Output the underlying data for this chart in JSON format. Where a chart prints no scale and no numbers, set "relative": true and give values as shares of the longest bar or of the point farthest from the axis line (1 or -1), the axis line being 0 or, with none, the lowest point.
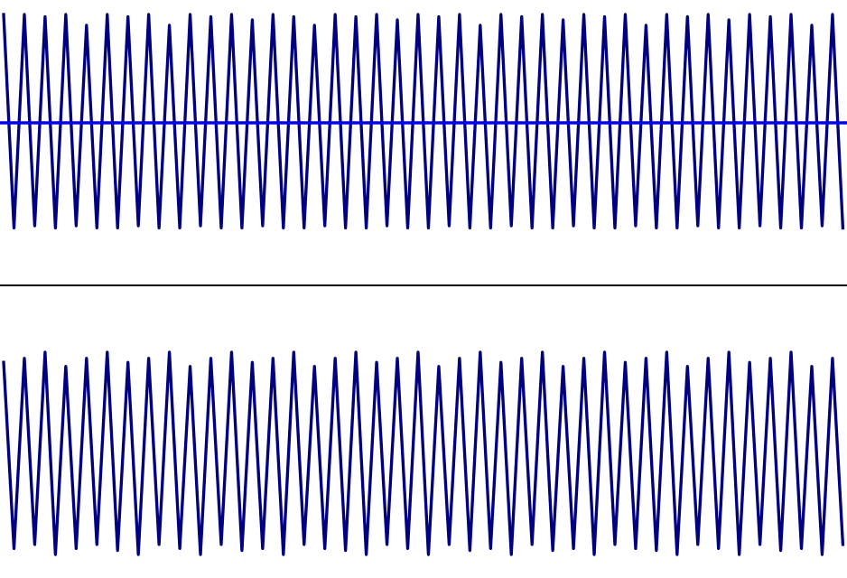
{
  "chart_data": [
    {
      "type": "line",
      "relative": true,
      "tick_labels": false,
      "legend": false,
      "marker": "none",
      "line_style": "solid",
      "ref_lines": [
        {
          "axis": "y",
          "value": 0,
          "color": "#0000ff",
          "line_style": "solid"
        }
      ],
      "categories": [
        null,
        null,
        null,
        null,
        null,
        null,
        null,
        null,
        null,
        null,
        null,
        null,
        null,
        null,
        null,
        null,
        null,
        null,
        null,
        null,
        null,
        null,
        null,
        null,
        null,
        null,
        null,
        null,
        null,
        null,
        null,
        null,
        null,
        null,
        null,
        null,
        null,
        null,
        null,
        null,
        null,
        null,
        null,
        null,
        null,
        null,
        null,
        null,
        null,
        null,
        null,
        null,
        null,
        null,
        null,
        null,
        null,
        null,
        null,
        null,
        null,
        null,
        null,
        null,
        null,
        null,
        null,
        null,
        null,
        null,
        null,
        null,
        null,
        null,
        null,
        null,
        null,
        null,
        null,
        null,
        null,
        null
      ],
      "series": [
        {
          "color": "#000080",
          "values": [
            1,
            -0.97,
            1,
            -0.95,
            0.98,
            -0.97,
            1,
            -0.95,
            0.9,
            -0.97,
            1,
            -0.97,
            0.98,
            -0.95,
            1,
            -0.97,
            0.9,
            -0.97,
            1,
            -0.95,
            0.98,
            -0.97,
            1,
            -0.97,
            0.95,
            -0.95,
            1,
            -0.97,
            0.98,
            -0.97,
            0.9,
            -0.95,
            1,
            -0.97,
            0.98,
            -0.97,
            1,
            -0.95,
            0.95,
            -0.97,
            1,
            -0.97,
            0.98,
            -0.95,
            1,
            -0.97,
            0.9,
            -0.97,
            1,
            -0.95,
            0.98,
            -0.97,
            1,
            -0.97,
            0.95,
            -0.95,
            1,
            -0.97,
            0.98,
            -0.97,
            1,
            -0.95,
            0.9,
            -0.97,
            1,
            -0.97,
            0.98,
            -0.95,
            1,
            -0.97,
            0.95,
            -0.97,
            1,
            -0.95,
            0.98,
            -0.97,
            1,
            -0.97,
            0.9,
            -0.95,
            1,
            -0.97
          ]
        }
      ]
    },
    {
      "type": "line",
      "relative": true,
      "tick_labels": false,
      "legend": false,
      "marker": "none",
      "line_style": "solid",
      "categories": [
        null,
        null,
        null,
        null,
        null,
        null,
        null,
        null,
        null,
        null,
        null,
        null,
        null,
        null,
        null,
        null,
        null,
        null,
        null,
        null,
        null,
        null,
        null,
        null,
        null,
        null,
        null,
        null,
        null,
        null,
        null,
        null,
        null,
        null,
        null,
        null,
        null,
        null,
        null,
        null,
        null,
        null,
        null,
        null,
        null,
        null,
        null,
        null,
        null,
        null,
        null,
        null,
        null,
        null,
        null,
        null,
        null,
        null,
        null,
        null,
        null,
        null,
        null,
        null,
        null,
        null,
        null,
        null,
        null,
        null,
        null,
        null,
        null,
        null,
        null,
        null,
        null,
        null,
        null,
        null,
        null,
        null
      ],
      "series": [
        {
          "color": "#000080",
          "values": [
            0.95,
            0.03,
            0.97,
            0.05,
            1,
            0,
            0.93,
            0.03,
            0.97,
            0.05,
            1,
            0.02,
            0.95,
            0,
            0.97,
            0.05,
            1,
            0.03,
            0.93,
            0,
            0.97,
            0.05,
            1,
            0.02,
            0.95,
            0.03,
            0.97,
            0,
            1,
            0.05,
            0.93,
            0.03,
            0.97,
            0.02,
            1,
            0,
            0.95,
            0.05,
            0.97,
            0.03,
            1,
            0,
            0.93,
            0.05,
            0.97,
            0.02,
            1,
            0.03,
            0.95,
            0,
            0.97,
            0.05,
            1,
            0.02,
            0.93,
            0.03,
            0.97,
            0,
            1,
            0.05,
            0.95,
            0.03,
            0.97,
            0.02,
            1,
            0,
            0.93,
            0.05,
            0.97,
            0.03,
            1,
            0,
            0.95,
            0.05,
            0.97,
            0.02,
            1,
            0.03,
            0.93,
            0,
            0.97,
            0.05
          ]
        }
      ]
    }
  ]
}
